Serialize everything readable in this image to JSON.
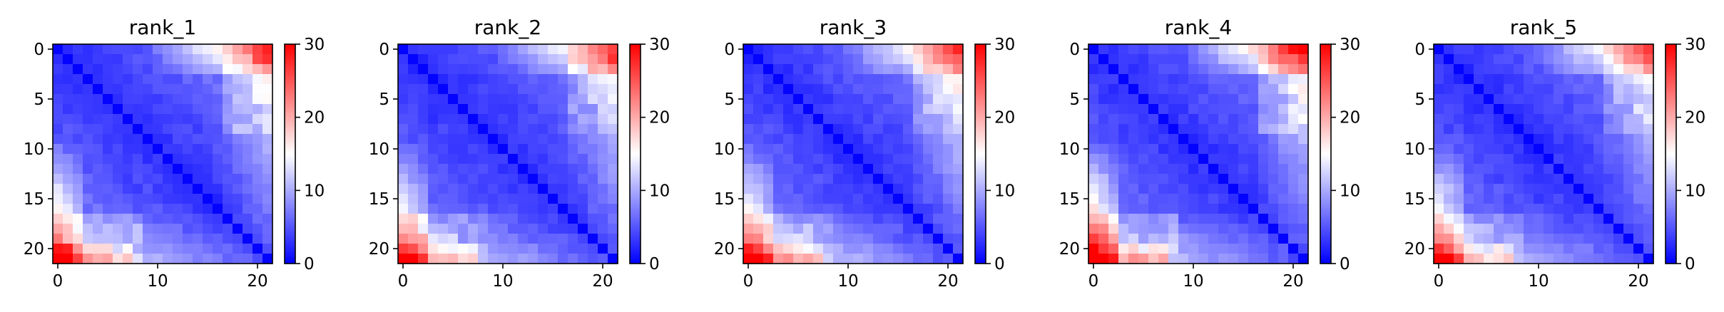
{
  "chart_data": {
    "type": "heatmap",
    "panels": [
      {
        "title": "rank_1",
        "seed": 11,
        "bottom_amp": 1.0,
        "top_amp": 0.95
      },
      {
        "title": "rank_2",
        "seed": 23,
        "bottom_amp": 0.95,
        "top_amp": 0.85
      },
      {
        "title": "rank_3",
        "seed": 37,
        "bottom_amp": 1.1,
        "top_amp": 0.9
      },
      {
        "title": "rank_4",
        "seed": 41,
        "bottom_amp": 1.05,
        "top_amp": 1.1
      },
      {
        "title": "rank_5",
        "seed": 59,
        "bottom_amp": 0.95,
        "top_amp": 0.85
      }
    ],
    "matrix_size": 22,
    "axis": {
      "x_ticks": [
        "0",
        "10",
        "20"
      ],
      "y_ticks": [
        "0",
        "5",
        "10",
        "15",
        "20"
      ],
      "range": [
        -0.5,
        21.5
      ]
    },
    "colorbar": {
      "colormap": "bwr",
      "vmin": 0,
      "vmax": 30,
      "ticks": [
        "0",
        "10",
        "20",
        "30"
      ]
    },
    "colors": {
      "low": "#0000ff",
      "mid": "#ffffff",
      "high": "#ff0000"
    }
  }
}
